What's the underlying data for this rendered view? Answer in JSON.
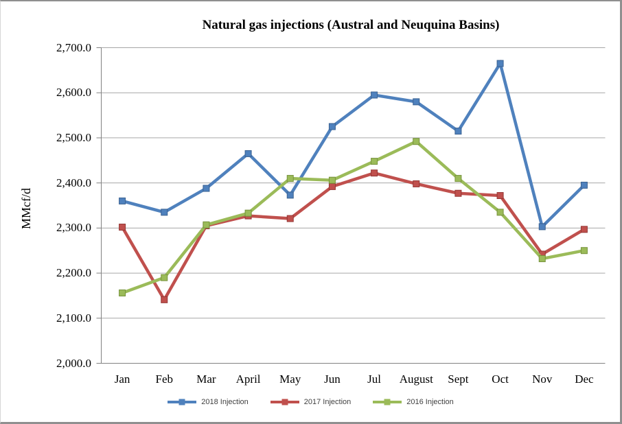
{
  "chart_data": {
    "type": "line",
    "title": "Natural gas injections (Austral and Neuquina Basins)",
    "ylabel": "MMcf/d",
    "xlabel": "",
    "categories": [
      "Jan",
      "Feb",
      "Mar",
      "April",
      "May",
      "Jun",
      "Jul",
      "August",
      "Sept",
      "Oct",
      "Nov",
      "Dec"
    ],
    "series": [
      {
        "name": "2018 Injection",
        "color": "#4F81BD",
        "marker_border": "#3A6191",
        "values": [
          2360,
          2335,
          2388,
          2465,
          2373,
          2525,
          2595,
          2580,
          2515,
          2665,
          2303,
          2395
        ]
      },
      {
        "name": "2017 Injection",
        "color": "#C0504D",
        "marker_border": "#943634",
        "values": [
          2302,
          2141,
          2305,
          2327,
          2321,
          2392,
          2422,
          2398,
          2377,
          2372,
          2242,
          2297
        ]
      },
      {
        "name": "2016 Injection",
        "color": "#9BBB59",
        "marker_border": "#76923C",
        "values": [
          2156,
          2190,
          2307,
          2333,
          2410,
          2406,
          2448,
          2492,
          2410,
          2335,
          2232,
          2250
        ]
      }
    ],
    "ylim": [
      2000,
      2700
    ],
    "y_tick_step": 100,
    "y_tick_labels": [
      "2,700.0",
      "2,600.0",
      "2,500.0",
      "2,400.0",
      "2,300.0",
      "2,200.0",
      "2,100.0",
      "2,000.0"
    ],
    "grid": "horizontal",
    "legend_position": "bottom",
    "marker": "square",
    "colors": {
      "gridline": "#A6A6A6",
      "axis": "#808080",
      "frame": "#8F8F8F",
      "text": "#000000",
      "legend_text": "#3F3F3F"
    }
  }
}
